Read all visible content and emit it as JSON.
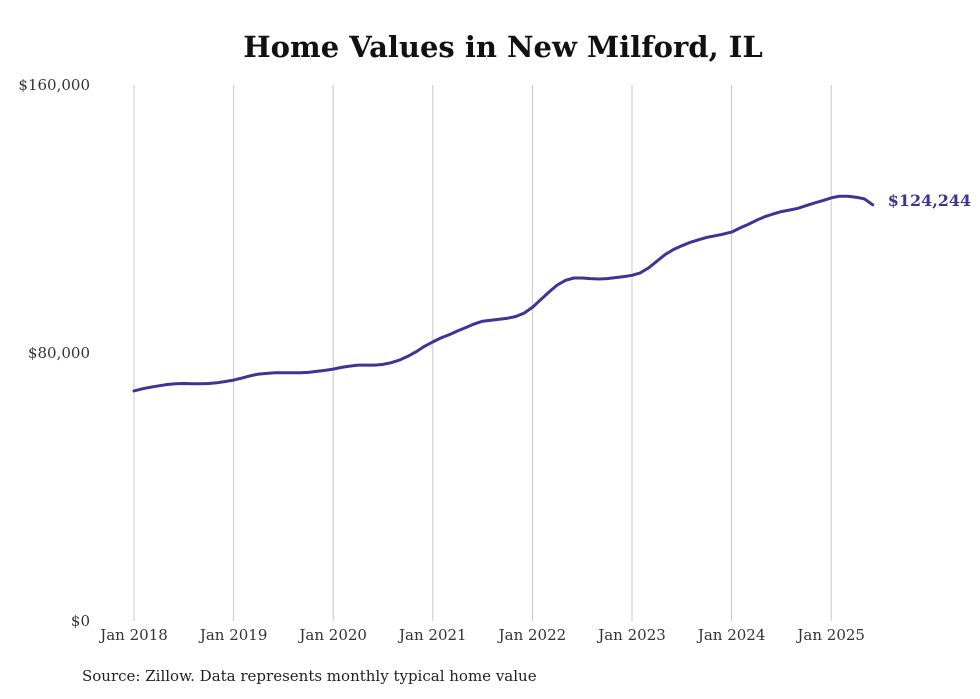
{
  "chart_data": {
    "type": "line",
    "title": "Home Values in New Milford, IL",
    "xlabel": "",
    "ylabel": "",
    "x_tick_labels": [
      "Jan 2018",
      "Jan 2019",
      "Jan 2020",
      "Jan 2021",
      "Jan 2022",
      "Jan 2023",
      "Jan 2024",
      "Jan 2025"
    ],
    "y_tick_labels": [
      "$0",
      "$80,000",
      "$160,000"
    ],
    "y_ticks": [
      0,
      80000,
      160000
    ],
    "ylim": [
      0,
      160000
    ],
    "xlim": [
      "2018-01",
      "2025-06"
    ],
    "grid": "vertical lines at each January",
    "line_color": "#3b3596",
    "end_label": "$124,244",
    "series": [
      {
        "x": [
          "2018-01",
          "2018-02",
          "2018-03",
          "2018-04",
          "2018-05",
          "2018-06",
          "2018-07",
          "2018-08",
          "2018-09",
          "2018-10",
          "2018-11",
          "2018-12",
          "2019-01",
          "2019-02",
          "2019-03",
          "2019-04",
          "2019-05",
          "2019-06",
          "2019-07",
          "2019-08",
          "2019-09",
          "2019-10",
          "2019-11",
          "2019-12",
          "2020-01",
          "2020-02",
          "2020-03",
          "2020-04",
          "2020-05",
          "2020-06",
          "2020-07",
          "2020-08",
          "2020-09",
          "2020-10",
          "2020-11",
          "2020-12",
          "2021-01",
          "2021-02",
          "2021-03",
          "2021-04",
          "2021-05",
          "2021-06",
          "2021-07",
          "2021-08",
          "2021-09",
          "2021-10",
          "2021-11",
          "2021-12",
          "2022-01",
          "2022-02",
          "2022-03",
          "2022-04",
          "2022-05",
          "2022-06",
          "2022-07",
          "2022-08",
          "2022-09",
          "2022-10",
          "2022-11",
          "2022-12",
          "2023-01",
          "2023-02",
          "2023-03",
          "2023-04",
          "2023-05",
          "2023-06",
          "2023-07",
          "2023-08",
          "2023-09",
          "2023-10",
          "2023-11",
          "2023-12",
          "2024-01",
          "2024-02",
          "2024-03",
          "2024-04",
          "2024-05",
          "2024-06",
          "2024-07",
          "2024-08",
          "2024-09",
          "2024-10",
          "2024-11",
          "2024-12",
          "2025-01",
          "2025-02",
          "2025-03",
          "2025-04",
          "2025-05",
          "2025-06"
        ],
        "values": [
          68700,
          69300,
          69800,
          70200,
          70600,
          70800,
          70900,
          70800,
          70800,
          70900,
          71100,
          71500,
          71900,
          72500,
          73200,
          73700,
          73900,
          74100,
          74100,
          74100,
          74100,
          74200,
          74500,
          74800,
          75200,
          75700,
          76100,
          76400,
          76400,
          76400,
          76600,
          77100,
          77900,
          79000,
          80400,
          82000,
          83300,
          84500,
          85500,
          86600,
          87600,
          88700,
          89500,
          89800,
          90100,
          90400,
          90900,
          91900,
          93600,
          95900,
          98200,
          100300,
          101700,
          102400,
          102400,
          102200,
          102100,
          102200,
          102500,
          102800,
          103200,
          103900,
          105400,
          107400,
          109400,
          110900,
          112000,
          113000,
          113800,
          114500,
          115000,
          115500,
          116100,
          117300,
          118400,
          119600,
          120700,
          121500,
          122200,
          122700,
          123200,
          124000,
          124800,
          125500,
          126300,
          126800,
          126800,
          126500,
          126000,
          124244
        ]
      }
    ]
  },
  "source_note": "Source: Zillow. Data represents monthly typical home value"
}
